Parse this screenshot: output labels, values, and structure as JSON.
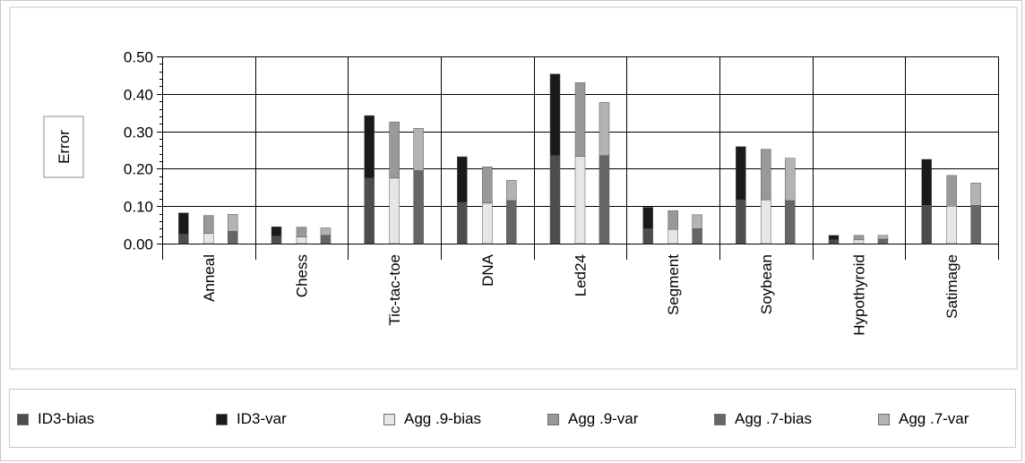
{
  "chart_data": {
    "type": "bar",
    "stacked": true,
    "ylabel": "Error",
    "ylim": [
      0,
      0.5
    ],
    "yticks": [
      "0.00",
      "0.10",
      "0.20",
      "0.30",
      "0.40",
      "0.50"
    ],
    "categories": [
      "Anneal",
      "Chess",
      "Tic-tac-toe",
      "DNA",
      "Led24",
      "Segment",
      "Soybean",
      "Hypothyroid",
      "Satimage"
    ],
    "groups": [
      {
        "bias": "ID3-bias",
        "var": "ID3-var",
        "bias_values": [
          0.025,
          0.02,
          0.175,
          0.11,
          0.235,
          0.04,
          0.117,
          0.01,
          0.102
        ],
        "var_values": [
          0.057,
          0.025,
          0.167,
          0.122,
          0.218,
          0.057,
          0.142,
          0.012,
          0.123
        ]
      },
      {
        "bias": "Agg .9-bias",
        "var": "Agg .9-var",
        "bias_values": [
          0.027,
          0.018,
          0.175,
          0.108,
          0.233,
          0.038,
          0.117,
          0.01,
          0.1
        ],
        "var_values": [
          0.048,
          0.026,
          0.15,
          0.097,
          0.197,
          0.05,
          0.135,
          0.012,
          0.082
        ]
      },
      {
        "bias": "Agg .7-bias",
        "var": "Agg .7-var",
        "bias_values": [
          0.033,
          0.022,
          0.195,
          0.115,
          0.235,
          0.04,
          0.115,
          0.012,
          0.102
        ],
        "var_values": [
          0.045,
          0.02,
          0.113,
          0.054,
          0.142,
          0.037,
          0.113,
          0.01,
          0.06
        ]
      }
    ],
    "legend": [
      {
        "label": "ID3-bias",
        "color": "#4d4d4d"
      },
      {
        "label": "ID3-var",
        "color": "#1a1a1a"
      },
      {
        "label": "Agg .9-bias",
        "color": "#e6e6e6"
      },
      {
        "label": "Agg .9-var",
        "color": "#999999"
      },
      {
        "label": "Agg .7-bias",
        "color": "#666666"
      },
      {
        "label": "Agg .7-var",
        "color": "#b3b3b3"
      }
    ],
    "legend_position": "bottom",
    "grid": true
  }
}
